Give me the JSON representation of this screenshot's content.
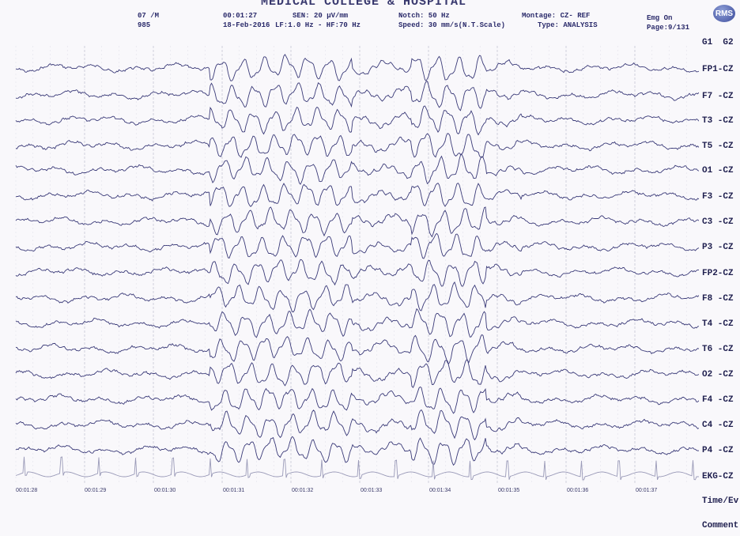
{
  "header": {
    "title_fragment": "MEDICAL COLLEGE & HOSPITAL",
    "age_sex": "07 /M",
    "patient_id": "985",
    "elapsed": "00:01:27",
    "date": "18-Feb-2016",
    "sensitivity": "SEN: 20 µV/mm",
    "filters": "LF:1.0 Hz - HF:70 Hz",
    "notch": "Notch: 50 Hz",
    "speed": "Speed: 30 mm/s(N.T.Scale)",
    "montage": "Montage: CZ- REF",
    "type": "Type: ANALYSIS",
    "emg": "Emg On",
    "page": "Page:9/131",
    "logo": "RMS"
  },
  "groups_label": "G1  G2",
  "channels": [
    {
      "label": "FP1-CZ"
    },
    {
      "label": "F7 -CZ"
    },
    {
      "label": "T3 -CZ"
    },
    {
      "label": "T5 -CZ"
    },
    {
      "label": "O1 -CZ"
    },
    {
      "label": "F3 -CZ"
    },
    {
      "label": "C3 -CZ"
    },
    {
      "label": "P3 -CZ"
    },
    {
      "label": "FP2-CZ"
    },
    {
      "label": "F8 -CZ"
    },
    {
      "label": "T4 -CZ"
    },
    {
      "label": "T6 -CZ"
    },
    {
      "label": "O2 -CZ"
    },
    {
      "label": "F4 -CZ"
    },
    {
      "label": "C4 -CZ"
    },
    {
      "label": "P4 -CZ"
    },
    {
      "label": "EKG-CZ"
    }
  ],
  "footer_rows": [
    {
      "label": "Time/Ev"
    },
    {
      "label": "Comment"
    }
  ],
  "time_marks": [
    "00:01:28",
    "00:01:29",
    "00:01:30",
    "00:01:31",
    "00:01:32",
    "00:01:33",
    "00:01:34",
    "00:01:35",
    "00:01:36",
    "00:01:37"
  ],
  "colors": {
    "trace": "#3a3a78",
    "grid": "#c9c9d6",
    "ekg": "#9a9ab8"
  }
}
